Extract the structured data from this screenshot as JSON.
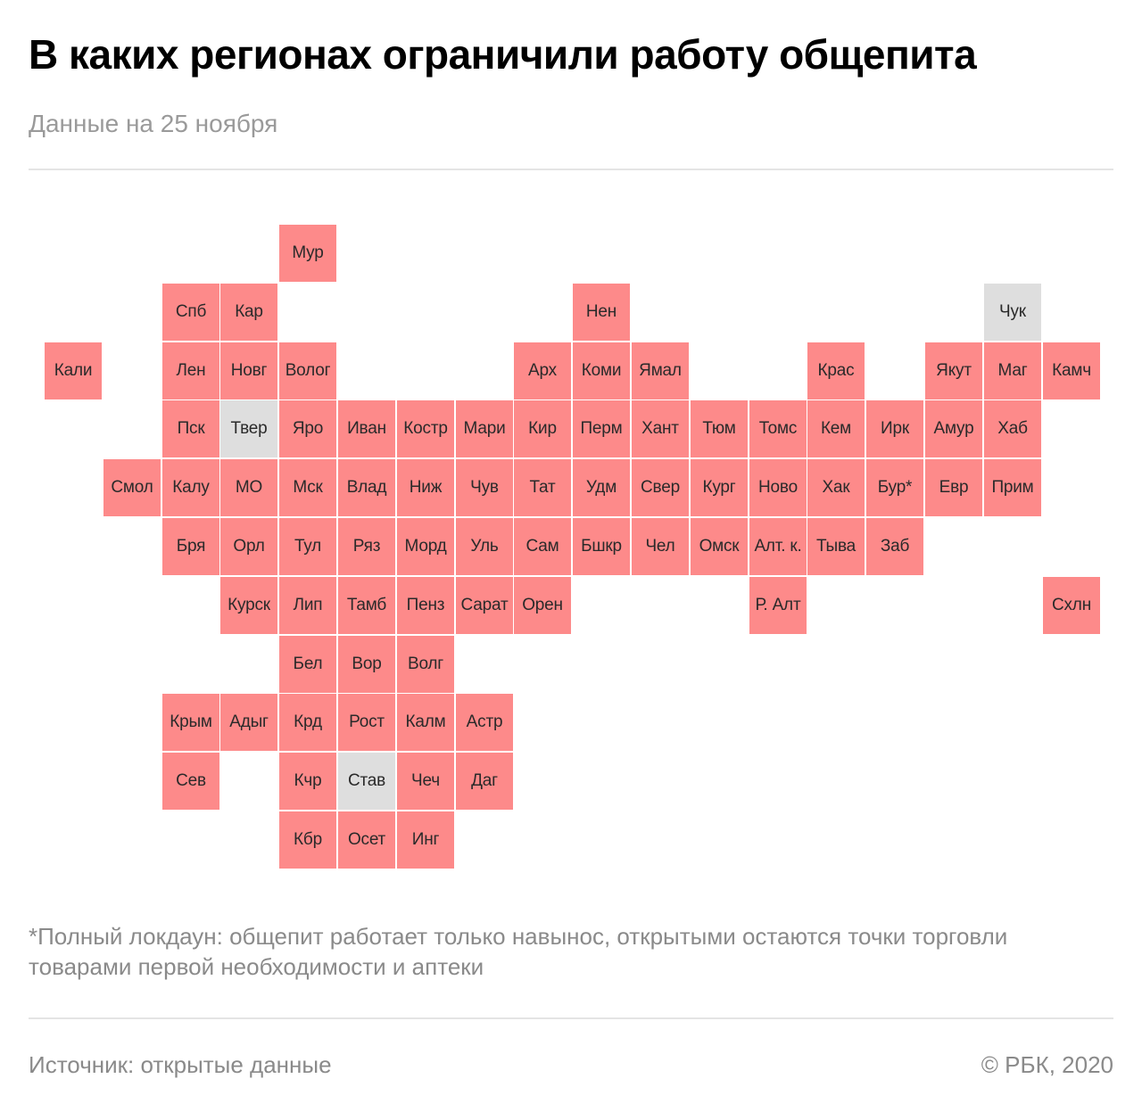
{
  "header": {
    "title": "В каких регионах ограничили работу общепита",
    "subtitle": "Данные на 25 ноября"
  },
  "colors": {
    "restricted": "#fd8a8a",
    "no_restrictions": "#dedede"
  },
  "regions": [
    {
      "label": "Мур",
      "row": 0,
      "col": 4,
      "status": "restricted"
    },
    {
      "label": "Спб",
      "row": 1,
      "col": 2,
      "status": "restricted"
    },
    {
      "label": "Кар",
      "row": 1,
      "col": 3,
      "status": "restricted"
    },
    {
      "label": "Нен",
      "row": 1,
      "col": 9,
      "status": "restricted"
    },
    {
      "label": "Чук",
      "row": 1,
      "col": 16,
      "status": "none"
    },
    {
      "label": "Кали",
      "row": 2,
      "col": 0,
      "status": "restricted"
    },
    {
      "label": "Лен",
      "row": 2,
      "col": 2,
      "status": "restricted"
    },
    {
      "label": "Новг",
      "row": 2,
      "col": 3,
      "status": "restricted"
    },
    {
      "label": "Волог",
      "row": 2,
      "col": 4,
      "status": "restricted"
    },
    {
      "label": "Арх",
      "row": 2,
      "col": 8,
      "status": "restricted"
    },
    {
      "label": "Коми",
      "row": 2,
      "col": 9,
      "status": "restricted"
    },
    {
      "label": "Ямал",
      "row": 2,
      "col": 10,
      "status": "restricted"
    },
    {
      "label": "Крас",
      "row": 2,
      "col": 13,
      "status": "restricted"
    },
    {
      "label": "Якут",
      "row": 2,
      "col": 15,
      "status": "restricted"
    },
    {
      "label": "Маг",
      "row": 2,
      "col": 16,
      "status": "restricted"
    },
    {
      "label": "Камч",
      "row": 2,
      "col": 17,
      "status": "restricted"
    },
    {
      "label": "Пск",
      "row": 3,
      "col": 2,
      "status": "restricted"
    },
    {
      "label": "Твер",
      "row": 3,
      "col": 3,
      "status": "none"
    },
    {
      "label": "Яро",
      "row": 3,
      "col": 4,
      "status": "restricted"
    },
    {
      "label": "Иван",
      "row": 3,
      "col": 5,
      "status": "restricted"
    },
    {
      "label": "Костр",
      "row": 3,
      "col": 6,
      "status": "restricted"
    },
    {
      "label": "Мари",
      "row": 3,
      "col": 7,
      "status": "restricted"
    },
    {
      "label": "Кир",
      "row": 3,
      "col": 8,
      "status": "restricted"
    },
    {
      "label": "Перм",
      "row": 3,
      "col": 9,
      "status": "restricted"
    },
    {
      "label": "Хант",
      "row": 3,
      "col": 10,
      "status": "restricted"
    },
    {
      "label": "Тюм",
      "row": 3,
      "col": 11,
      "status": "restricted"
    },
    {
      "label": "Томс",
      "row": 3,
      "col": 12,
      "status": "restricted"
    },
    {
      "label": "Кем",
      "row": 3,
      "col": 13,
      "status": "restricted"
    },
    {
      "label": "Ирк",
      "row": 3,
      "col": 14,
      "status": "restricted"
    },
    {
      "label": "Амур",
      "row": 3,
      "col": 15,
      "status": "restricted"
    },
    {
      "label": "Хаб",
      "row": 3,
      "col": 16,
      "status": "restricted"
    },
    {
      "label": "Смол",
      "row": 4,
      "col": 1,
      "status": "restricted"
    },
    {
      "label": "Калу",
      "row": 4,
      "col": 2,
      "status": "restricted"
    },
    {
      "label": "МО",
      "row": 4,
      "col": 3,
      "status": "restricted"
    },
    {
      "label": "Мск",
      "row": 4,
      "col": 4,
      "status": "restricted"
    },
    {
      "label": "Влад",
      "row": 4,
      "col": 5,
      "status": "restricted"
    },
    {
      "label": "Ниж",
      "row": 4,
      "col": 6,
      "status": "restricted"
    },
    {
      "label": "Чув",
      "row": 4,
      "col": 7,
      "status": "restricted"
    },
    {
      "label": "Тат",
      "row": 4,
      "col": 8,
      "status": "restricted"
    },
    {
      "label": "Удм",
      "row": 4,
      "col": 9,
      "status": "restricted"
    },
    {
      "label": "Свер",
      "row": 4,
      "col": 10,
      "status": "restricted"
    },
    {
      "label": "Кург",
      "row": 4,
      "col": 11,
      "status": "restricted"
    },
    {
      "label": "Ново",
      "row": 4,
      "col": 12,
      "status": "restricted"
    },
    {
      "label": "Хак",
      "row": 4,
      "col": 13,
      "status": "restricted"
    },
    {
      "label": "Бур*",
      "row": 4,
      "col": 14,
      "status": "restricted"
    },
    {
      "label": "Евр",
      "row": 4,
      "col": 15,
      "status": "restricted"
    },
    {
      "label": "Прим",
      "row": 4,
      "col": 16,
      "status": "restricted"
    },
    {
      "label": "Бря",
      "row": 5,
      "col": 2,
      "status": "restricted"
    },
    {
      "label": "Орл",
      "row": 5,
      "col": 3,
      "status": "restricted"
    },
    {
      "label": "Тул",
      "row": 5,
      "col": 4,
      "status": "restricted"
    },
    {
      "label": "Ряз",
      "row": 5,
      "col": 5,
      "status": "restricted"
    },
    {
      "label": "Морд",
      "row": 5,
      "col": 6,
      "status": "restricted"
    },
    {
      "label": "Уль",
      "row": 5,
      "col": 7,
      "status": "restricted"
    },
    {
      "label": "Сам",
      "row": 5,
      "col": 8,
      "status": "restricted"
    },
    {
      "label": "Бшкр",
      "row": 5,
      "col": 9,
      "status": "restricted"
    },
    {
      "label": "Чел",
      "row": 5,
      "col": 10,
      "status": "restricted"
    },
    {
      "label": "Омск",
      "row": 5,
      "col": 11,
      "status": "restricted"
    },
    {
      "label": "Алт. к.",
      "row": 5,
      "col": 12,
      "status": "restricted"
    },
    {
      "label": "Тыва",
      "row": 5,
      "col": 13,
      "status": "restricted"
    },
    {
      "label": "Заб",
      "row": 5,
      "col": 14,
      "status": "restricted"
    },
    {
      "label": "Курск",
      "row": 6,
      "col": 3,
      "status": "restricted"
    },
    {
      "label": "Лип",
      "row": 6,
      "col": 4,
      "status": "restricted"
    },
    {
      "label": "Тамб",
      "row": 6,
      "col": 5,
      "status": "restricted"
    },
    {
      "label": "Пенз",
      "row": 6,
      "col": 6,
      "status": "restricted"
    },
    {
      "label": "Сарат",
      "row": 6,
      "col": 7,
      "status": "restricted"
    },
    {
      "label": "Орен",
      "row": 6,
      "col": 8,
      "status": "restricted"
    },
    {
      "label": "Р. Алт",
      "row": 6,
      "col": 12,
      "status": "restricted"
    },
    {
      "label": "Схлн",
      "row": 6,
      "col": 17,
      "status": "restricted"
    },
    {
      "label": "Бел",
      "row": 7,
      "col": 4,
      "status": "restricted"
    },
    {
      "label": "Вор",
      "row": 7,
      "col": 5,
      "status": "restricted"
    },
    {
      "label": "Волг",
      "row": 7,
      "col": 6,
      "status": "restricted"
    },
    {
      "label": "Крым",
      "row": 8,
      "col": 2,
      "status": "restricted"
    },
    {
      "label": "Адыг",
      "row": 8,
      "col": 3,
      "status": "restricted"
    },
    {
      "label": "Крд",
      "row": 8,
      "col": 4,
      "status": "restricted"
    },
    {
      "label": "Рост",
      "row": 8,
      "col": 5,
      "status": "restricted"
    },
    {
      "label": "Калм",
      "row": 8,
      "col": 6,
      "status": "restricted"
    },
    {
      "label": "Астр",
      "row": 8,
      "col": 7,
      "status": "restricted"
    },
    {
      "label": "Сев",
      "row": 9,
      "col": 2,
      "status": "restricted"
    },
    {
      "label": "Кчр",
      "row": 9,
      "col": 4,
      "status": "restricted"
    },
    {
      "label": "Став",
      "row": 9,
      "col": 5,
      "status": "none"
    },
    {
      "label": "Чеч",
      "row": 9,
      "col": 6,
      "status": "restricted"
    },
    {
      "label": "Даг",
      "row": 9,
      "col": 7,
      "status": "restricted"
    },
    {
      "label": "Кбр",
      "row": 10,
      "col": 4,
      "status": "restricted"
    },
    {
      "label": "Осет",
      "row": 10,
      "col": 5,
      "status": "restricted"
    },
    {
      "label": "Инг",
      "row": 10,
      "col": 6,
      "status": "restricted"
    }
  ],
  "footnote": "*Полный локдаун: общепит работает только навынос, открытыми остаются точки торговли товарами первой необходимости и аптеки",
  "footer": {
    "source": "Источник:  открытые данные",
    "copyright": "©  РБК, 2020"
  }
}
